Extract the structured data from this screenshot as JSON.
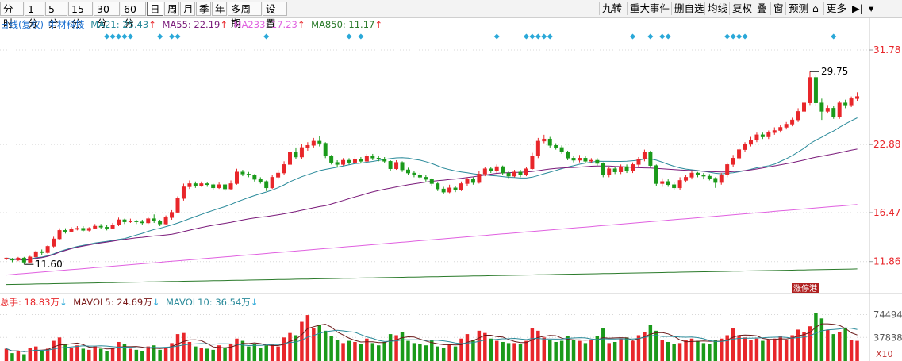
{
  "toolbar": {
    "periods": [
      "分时",
      "1分",
      "5分",
      "15分",
      "30分",
      "60分",
      "日",
      "周",
      "月",
      "季",
      "年",
      "多周期",
      "设置"
    ],
    "active_period": "日",
    "right_items": [
      "九转",
      "重大事件",
      "删自选",
      "均线",
      "复权",
      "叠",
      "窗",
      "预测",
      "更多"
    ]
  },
  "legend": {
    "series_name": "日线(复权)",
    "stock_name": "中材科技",
    "ma21_label": "MA21: 25.43",
    "ma55_label": "MA55: 22.19",
    "ma233_label": "MA233: 17.23",
    "ma850_label": "MA850: 11.17",
    "up_arrow": "↑"
  },
  "volume_legend": {
    "total_label": "总手: 18.83万",
    "mavol5_label": "MAVOL5: 24.69万",
    "mavol10_label": "MAVOL10: 36.54万",
    "down_arrow": "↓"
  },
  "colors": {
    "up": "#e8262a",
    "down": "#1a9a1a",
    "ma21": "#2a8a9a",
    "ma55": "#7a1a7a",
    "ma233": "#e060e0",
    "ma850": "#2a7a2a",
    "marker": "#2aa8d8",
    "axis_text": "#e8262a"
  },
  "chart_data": {
    "type": "candlestick",
    "price_axis_ticks": [
      "31.78",
      "22.88",
      "16.47",
      "11.86"
    ],
    "volume_axis_ticks": [
      "74494",
      "37838"
    ],
    "volume_unit": "X10",
    "high_annotation": "29.75",
    "low_annotation": "11.60",
    "badge_text": "涨停港",
    "y_range": [
      9.0,
      33.5
    ],
    "candles": [
      [
        12.1,
        12.2,
        12.0,
        12.1
      ],
      [
        12.1,
        12.0,
        11.8,
        12.2
      ],
      [
        12.0,
        12.2,
        11.9,
        12.3
      ],
      [
        12.2,
        11.8,
        11.6,
        12.3
      ],
      [
        11.8,
        12.3,
        11.7,
        12.4
      ],
      [
        12.3,
        12.8,
        12.2,
        12.9
      ],
      [
        12.8,
        12.7,
        12.5,
        13.0
      ],
      [
        12.7,
        13.3,
        12.6,
        13.4
      ],
      [
        13.3,
        14.0,
        13.2,
        14.2
      ],
      [
        14.0,
        14.8,
        13.9,
        15.0
      ],
      [
        14.8,
        14.7,
        14.5,
        15.0
      ],
      [
        14.7,
        14.9,
        14.6,
        15.1
      ],
      [
        14.9,
        15.0,
        14.8,
        15.2
      ],
      [
        15.0,
        14.8,
        14.7,
        15.2
      ],
      [
        14.8,
        15.0,
        14.7,
        15.1
      ],
      [
        15.0,
        15.2,
        14.9,
        15.4
      ],
      [
        15.2,
        15.1,
        14.9,
        15.4
      ],
      [
        15.1,
        15.0,
        14.8,
        15.3
      ],
      [
        15.0,
        15.3,
        14.9,
        15.5
      ],
      [
        15.3,
        15.8,
        15.2,
        16.0
      ],
      [
        15.8,
        15.6,
        15.4,
        15.9
      ],
      [
        15.6,
        15.7,
        15.5,
        15.9
      ],
      [
        15.7,
        15.6,
        15.4,
        15.8
      ],
      [
        15.6,
        15.5,
        15.3,
        15.8
      ],
      [
        15.5,
        15.9,
        15.4,
        16.1
      ],
      [
        15.9,
        15.7,
        15.5,
        16.3
      ],
      [
        15.7,
        15.4,
        15.2,
        15.8
      ],
      [
        15.4,
        16.0,
        15.3,
        16.2
      ],
      [
        16.0,
        16.5,
        15.8,
        16.7
      ],
      [
        16.5,
        17.8,
        16.4,
        18.0
      ],
      [
        17.8,
        18.9,
        17.6,
        19.2
      ],
      [
        18.9,
        19.2,
        18.7,
        19.5
      ],
      [
        19.2,
        19.0,
        18.8,
        19.4
      ],
      [
        19.0,
        19.2,
        18.9,
        19.4
      ],
      [
        19.2,
        19.1,
        18.9,
        19.3
      ],
      [
        19.1,
        18.8,
        18.6,
        19.2
      ],
      [
        18.8,
        19.1,
        18.7,
        19.3
      ],
      [
        19.1,
        18.7,
        18.5,
        19.2
      ],
      [
        18.7,
        19.2,
        18.6,
        19.5
      ],
      [
        19.2,
        20.3,
        19.1,
        20.6
      ],
      [
        20.3,
        20.1,
        19.9,
        20.5
      ],
      [
        20.1,
        20.0,
        19.8,
        20.3
      ],
      [
        20.0,
        19.6,
        19.4,
        20.1
      ],
      [
        19.6,
        19.4,
        19.2,
        19.8
      ],
      [
        19.4,
        18.8,
        18.5,
        19.5
      ],
      [
        18.8,
        19.8,
        18.7,
        20.0
      ],
      [
        19.8,
        20.2,
        19.6,
        20.5
      ],
      [
        20.2,
        21.0,
        20.0,
        21.3
      ],
      [
        21.0,
        22.2,
        20.8,
        22.5
      ],
      [
        22.2,
        21.7,
        21.5,
        22.6
      ],
      [
        21.7,
        22.6,
        21.5,
        22.9
      ],
      [
        22.6,
        22.8,
        22.3,
        23.1
      ],
      [
        22.8,
        23.2,
        22.6,
        23.5
      ],
      [
        23.2,
        23.0,
        22.7,
        23.7
      ],
      [
        23.0,
        21.8,
        21.6,
        23.1
      ],
      [
        21.8,
        21.2,
        21.0,
        21.9
      ],
      [
        21.2,
        21.0,
        20.8,
        21.4
      ],
      [
        21.0,
        21.4,
        20.9,
        21.6
      ],
      [
        21.4,
        21.2,
        21.0,
        21.6
      ],
      [
        21.2,
        21.5,
        21.1,
        21.8
      ],
      [
        21.5,
        21.3,
        21.1,
        21.7
      ],
      [
        21.3,
        21.8,
        21.2,
        22.0
      ],
      [
        21.8,
        21.6,
        21.4,
        22.0
      ],
      [
        21.6,
        21.5,
        21.3,
        21.8
      ],
      [
        21.5,
        21.3,
        21.1,
        21.7
      ],
      [
        21.3,
        20.6,
        20.4,
        21.4
      ],
      [
        20.6,
        21.2,
        20.5,
        21.4
      ],
      [
        21.2,
        20.5,
        20.3,
        21.3
      ],
      [
        20.5,
        20.2,
        20.0,
        20.7
      ],
      [
        20.2,
        20.0,
        19.8,
        20.4
      ],
      [
        20.0,
        19.8,
        19.6,
        20.2
      ],
      [
        19.8,
        19.6,
        19.4,
        20.0
      ],
      [
        19.6,
        19.2,
        19.0,
        19.7
      ],
      [
        19.2,
        18.7,
        18.5,
        19.3
      ],
      [
        18.7,
        18.4,
        18.2,
        18.9
      ],
      [
        18.4,
        18.8,
        18.3,
        19.1
      ],
      [
        18.8,
        18.6,
        18.4,
        19.0
      ],
      [
        18.6,
        19.2,
        18.5,
        19.4
      ],
      [
        19.2,
        19.6,
        19.0,
        19.8
      ],
      [
        19.6,
        19.3,
        19.1,
        19.8
      ],
      [
        19.3,
        20.1,
        19.2,
        20.4
      ],
      [
        20.1,
        20.6,
        19.9,
        20.8
      ],
      [
        20.6,
        20.4,
        20.2,
        20.8
      ],
      [
        20.4,
        20.8,
        20.2,
        21.0
      ],
      [
        20.8,
        20.2,
        20.0,
        20.9
      ],
      [
        20.2,
        19.9,
        19.7,
        20.4
      ],
      [
        19.9,
        20.3,
        19.8,
        20.5
      ],
      [
        20.3,
        20.0,
        19.8,
        20.5
      ],
      [
        20.0,
        20.6,
        19.9,
        20.8
      ],
      [
        20.6,
        21.8,
        20.5,
        22.1
      ],
      [
        21.8,
        23.2,
        21.6,
        23.5
      ],
      [
        23.2,
        23.4,
        23.0,
        23.8
      ],
      [
        23.4,
        22.8,
        22.6,
        23.6
      ],
      [
        22.8,
        22.6,
        22.4,
        23.0
      ],
      [
        22.6,
        22.2,
        22.0,
        22.8
      ],
      [
        22.2,
        21.6,
        21.4,
        22.3
      ],
      [
        21.6,
        21.4,
        21.2,
        21.8
      ],
      [
        21.4,
        21.6,
        21.2,
        21.9
      ],
      [
        21.6,
        21.3,
        21.1,
        21.8
      ],
      [
        21.3,
        21.4,
        21.1,
        21.6
      ],
      [
        21.4,
        21.1,
        20.9,
        21.6
      ],
      [
        21.1,
        20.0,
        19.8,
        21.2
      ],
      [
        20.0,
        20.6,
        19.8,
        20.8
      ],
      [
        20.6,
        20.3,
        20.1,
        20.8
      ],
      [
        20.3,
        20.8,
        20.1,
        21.0
      ],
      [
        20.8,
        20.4,
        20.2,
        21.0
      ],
      [
        20.4,
        21.0,
        20.2,
        21.2
      ],
      [
        21.0,
        21.5,
        20.8,
        21.7
      ],
      [
        21.5,
        22.2,
        21.3,
        22.4
      ],
      [
        22.2,
        20.9,
        20.7,
        22.3
      ],
      [
        20.9,
        19.2,
        19.0,
        21.0
      ],
      [
        19.2,
        19.4,
        18.9,
        19.7
      ],
      [
        19.4,
        19.1,
        18.9,
        19.6
      ],
      [
        19.1,
        18.8,
        18.6,
        19.3
      ],
      [
        18.8,
        19.5,
        18.6,
        19.8
      ],
      [
        19.5,
        19.8,
        19.3,
        20.0
      ],
      [
        19.8,
        20.2,
        19.6,
        20.4
      ],
      [
        20.2,
        20.0,
        19.8,
        20.3
      ],
      [
        20.0,
        19.9,
        19.6,
        20.2
      ],
      [
        19.9,
        19.7,
        19.5,
        20.1
      ],
      [
        19.7,
        19.3,
        18.8,
        19.8
      ],
      [
        19.3,
        20.0,
        19.1,
        20.2
      ],
      [
        20.0,
        21.0,
        19.8,
        21.2
      ],
      [
        21.0,
        21.6,
        20.8,
        21.9
      ],
      [
        21.6,
        22.4,
        21.4,
        22.6
      ],
      [
        22.4,
        22.9,
        22.2,
        23.1
      ],
      [
        22.9,
        23.3,
        22.7,
        23.6
      ],
      [
        23.3,
        23.8,
        23.1,
        24.0
      ],
      [
        23.8,
        23.6,
        23.4,
        24.0
      ],
      [
        23.6,
        24.0,
        23.4,
        24.2
      ],
      [
        24.0,
        24.2,
        23.8,
        24.5
      ],
      [
        24.2,
        24.5,
        24.0,
        24.7
      ],
      [
        24.5,
        24.8,
        24.3,
        25.0
      ],
      [
        24.8,
        25.2,
        24.6,
        25.4
      ],
      [
        25.2,
        26.0,
        25.0,
        26.3
      ],
      [
        26.0,
        26.8,
        25.8,
        27.0
      ],
      [
        26.8,
        29.2,
        26.6,
        29.75
      ],
      [
        29.2,
        26.8,
        26.5,
        29.4
      ],
      [
        26.8,
        26.0,
        25.2,
        27.2
      ],
      [
        26.0,
        26.3,
        25.8,
        26.6
      ],
      [
        26.3,
        25.5,
        25.3,
        26.5
      ],
      [
        25.5,
        26.8,
        25.3,
        27.0
      ],
      [
        26.8,
        26.6,
        26.3,
        27.1
      ],
      [
        26.6,
        27.2,
        26.4,
        27.4
      ],
      [
        27.2,
        27.4,
        27.0,
        27.8
      ]
    ],
    "volumes": [
      1.1,
      0.7,
      0.9,
      0.6,
      1.2,
      1.3,
      0.9,
      1.1,
      1.8,
      2.1,
      1.5,
      1.2,
      1.4,
      1.1,
      1.0,
      1.3,
      1.1,
      0.9,
      1.2,
      1.7,
      1.5,
      1.1,
      1.0,
      0.9,
      1.3,
      1.4,
      1.0,
      1.2,
      1.6,
      2.4,
      2.5,
      1.7,
      1.3,
      1.2,
      1.1,
      1.0,
      1.4,
      1.2,
      1.5,
      2.0,
      1.8,
      1.3,
      1.5,
      1.2,
      1.4,
      1.5,
      1.3,
      2.1,
      2.5,
      2.3,
      3.5,
      4.1,
      2.9,
      3.2,
      2.7,
      2.2,
      1.9,
      1.6,
      1.8,
      1.7,
      1.5,
      2.0,
      1.6,
      1.4,
      1.7,
      2.4,
      2.3,
      2.6,
      1.8,
      1.6,
      1.5,
      1.4,
      1.9,
      1.3,
      1.2,
      1.5,
      1.3,
      2.0,
      2.4,
      1.9,
      2.7,
      2.5,
      2.0,
      1.8,
      1.7,
      1.6,
      1.6,
      1.5,
      1.8,
      2.9,
      2.7,
      2.1,
      1.9,
      1.7,
      1.8,
      2.2,
      1.9,
      1.8,
      1.6,
      1.9,
      2.2,
      2.9,
      1.6,
      1.7,
      2.0,
      2.1,
      1.8,
      2.3,
      2.6,
      3.2,
      2.7,
      1.9,
      1.7,
      1.5,
      1.6,
      1.9,
      2.0,
      1.8,
      1.6,
      1.5,
      1.9,
      2.0,
      2.3,
      2.9,
      2.3,
      2.1,
      1.9,
      2.0,
      1.8,
      1.9,
      2.0,
      2.2,
      1.9,
      2.3,
      2.8,
      2.6,
      3.1,
      4.3,
      3.8,
      2.8,
      2.4,
      2.6,
      2.9,
      1.9,
      1.8
    ],
    "volume_y_range": [
      0,
      4.6
    ],
    "marker_rows": {
      "indices": [
        17,
        18,
        19,
        20,
        21,
        26,
        28,
        29,
        44,
        58,
        60,
        83,
        88,
        89,
        90,
        91,
        92,
        106,
        109,
        111,
        112,
        122,
        123,
        124,
        125,
        140
      ]
    }
  }
}
